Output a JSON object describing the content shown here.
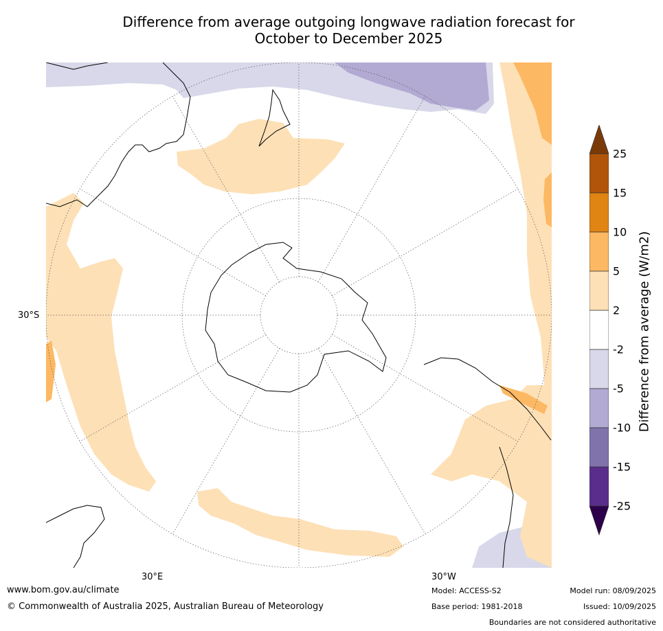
{
  "title": {
    "line1": "Difference from average outgoing longwave radiation forecast for",
    "line2": "October to December 2025"
  },
  "map": {
    "projection": "south-polar stereographic",
    "graticule_labels": {
      "lat": "30°S",
      "lon_left": "30°E",
      "lon_right": "30°W"
    }
  },
  "colorbar": {
    "label": "Difference from average (W/m2)",
    "ticks": [
      "25",
      "15",
      "10",
      "5",
      "2",
      "-2",
      "-5",
      "-10",
      "-15",
      "-25"
    ],
    "colors": {
      "above_25": "#7a3a08",
      "15_25": "#b0550a",
      "10_15": "#e08414",
      "5_10": "#fdb863",
      "2_5": "#fde0b6",
      "neg2_2": "#ffffff",
      "neg5_neg2": "#d8d8ea",
      "neg10_neg5": "#b2aad2",
      "neg15_neg10": "#8073ac",
      "neg25_neg15": "#5a2d8c",
      "below_neg25": "#2d004b"
    }
  },
  "footer": {
    "url": "www.bom.gov.au/climate",
    "copyright": "© Commonwealth of Australia 2025, Australian Bureau of Meteorology",
    "model": "Model: ACCESS-S2",
    "base_period": "Base period: 1981-2018",
    "model_run": "Model run: 08/09/2025",
    "issued": "Issued: 10/09/2025",
    "disclaimer": "Boundaries are not considered authoritative"
  }
}
